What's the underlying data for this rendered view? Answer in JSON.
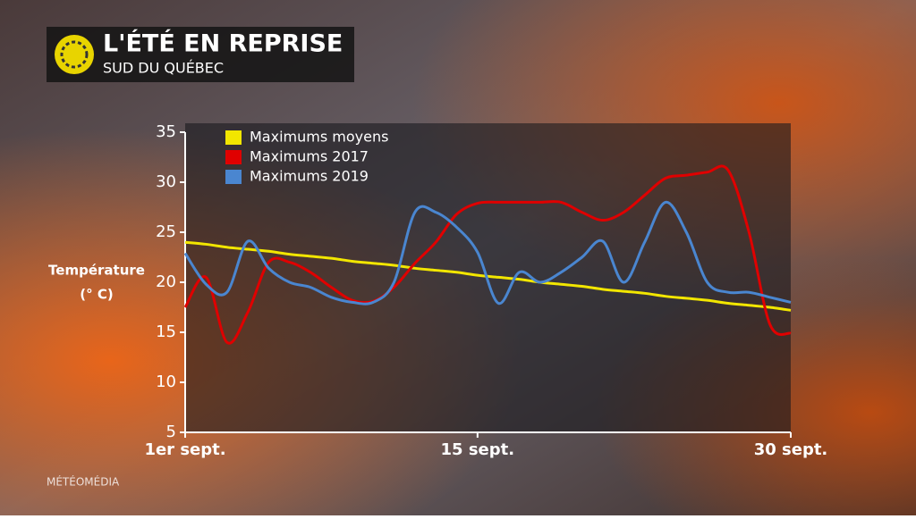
{
  "header": {
    "title": "L'ÉTÉ EN REPRISE",
    "subtitle": "SUD DU QUÉBEC"
  },
  "watermark": "MÉTÉOMÉDIA",
  "chart_data": {
    "type": "line",
    "ylabel": [
      "Température",
      "(° C)"
    ],
    "x": [
      1,
      2,
      3,
      4,
      5,
      6,
      7,
      8,
      9,
      10,
      11,
      12,
      13,
      14,
      15,
      16,
      17,
      18,
      19,
      20,
      21,
      22,
      23,
      24,
      25,
      26,
      27,
      28,
      29,
      30
    ],
    "xlim": [
      1,
      30
    ],
    "xticks": [
      {
        "value": 1,
        "label": "1er sept."
      },
      {
        "value": 15,
        "label": "15 sept."
      },
      {
        "value": 30,
        "label": "30 sept."
      }
    ],
    "ylim": [
      5,
      35
    ],
    "yticks": [
      5,
      10,
      15,
      20,
      25,
      30,
      35
    ],
    "legend": "top-left",
    "series": [
      {
        "name": "Maximums moyens",
        "color": "#f2e600",
        "values": [
          24,
          23.8,
          23.5,
          23.3,
          23.1,
          22.8,
          22.6,
          22.4,
          22.1,
          21.9,
          21.7,
          21.4,
          21.2,
          21,
          20.7,
          20.5,
          20.3,
          20,
          19.8,
          19.6,
          19.3,
          19.1,
          18.9,
          18.6,
          18.4,
          18.2,
          17.9,
          17.7,
          17.5,
          17.2
        ]
      },
      {
        "name": "Maximums 2017",
        "color": "#e00000",
        "values": [
          17.5,
          20.5,
          14,
          17,
          22,
          22,
          21,
          19.5,
          18.2,
          18.1,
          19.5,
          21.9,
          24,
          26.8,
          27.9,
          28,
          28,
          28,
          28,
          27,
          26.2,
          27,
          28.7,
          30.4,
          30.7,
          31,
          31.2,
          25,
          15.8,
          14.9
        ]
      },
      {
        "name": "Maximums 2019",
        "color": "#4a86d0",
        "values": [
          22.9,
          19.8,
          19,
          24.1,
          21.4,
          20,
          19.5,
          18.5,
          18,
          18,
          20,
          27,
          27,
          25.5,
          23,
          17.9,
          21,
          20,
          21,
          22.5,
          24.1,
          20,
          24,
          28,
          25,
          20,
          19,
          19,
          18.5,
          18
        ]
      }
    ]
  }
}
